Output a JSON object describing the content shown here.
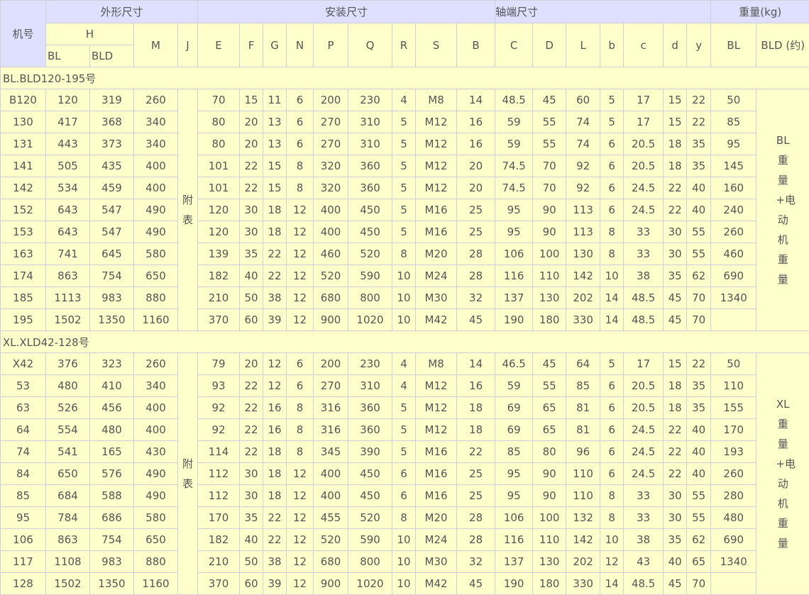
{
  "header": {
    "model": "机号",
    "group_outline": "外形尺寸",
    "group_install": "安装尺寸",
    "group_shaft": "轴端尺寸",
    "group_weight": "重量(kg)",
    "H": "H",
    "H_BL": "BL",
    "H_BLD": "BLD",
    "columns": [
      "M",
      "J",
      "E",
      "F",
      "G",
      "N",
      "P",
      "Q",
      "R",
      "S",
      "B",
      "C",
      "D",
      "L",
      "b",
      "c",
      "d",
      "y"
    ],
    "weight_BL": "BL",
    "weight_BLD": "BLD (约)"
  },
  "sections": [
    {
      "title": "BL.BLD120-195号",
      "J_note": "附表",
      "weight_note": "BL重量+电动机重量",
      "rows": [
        [
          "B120",
          "120",
          "319",
          "260",
          "70",
          "15",
          "11",
          "6",
          "200",
          "230",
          "4",
          "M8",
          "14",
          "48.5",
          "45",
          "60",
          "5",
          "17",
          "15",
          "22",
          "50"
        ],
        [
          "130",
          "417",
          "368",
          "340",
          "80",
          "20",
          "13",
          "6",
          "270",
          "310",
          "5",
          "M12",
          "16",
          "59",
          "55",
          "74",
          "5",
          "17",
          "15",
          "22",
          "85"
        ],
        [
          "131",
          "443",
          "373",
          "340",
          "80",
          "20",
          "13",
          "6",
          "270",
          "310",
          "5",
          "M12",
          "16",
          "59",
          "55",
          "74",
          "6",
          "20.5",
          "18",
          "35",
          "95"
        ],
        [
          "141",
          "505",
          "435",
          "400",
          "101",
          "22",
          "15",
          "8",
          "320",
          "360",
          "5",
          "M12",
          "20",
          "74.5",
          "70",
          "92",
          "6",
          "20.5",
          "18",
          "35",
          "145"
        ],
        [
          "142",
          "534",
          "459",
          "400",
          "101",
          "22",
          "15",
          "8",
          "320",
          "360",
          "5",
          "M12",
          "20",
          "74.5",
          "70",
          "92",
          "6",
          "24.5",
          "22",
          "40",
          "160"
        ],
        [
          "152",
          "643",
          "547",
          "490",
          "120",
          "30",
          "18",
          "12",
          "400",
          "450",
          "5",
          "M16",
          "25",
          "95",
          "90",
          "113",
          "6",
          "24.5",
          "22",
          "40",
          "240"
        ],
        [
          "153",
          "643",
          "547",
          "490",
          "120",
          "30",
          "18",
          "12",
          "400",
          "450",
          "5",
          "M16",
          "25",
          "95",
          "90",
          "113",
          "8",
          "33",
          "30",
          "55",
          "260"
        ],
        [
          "163",
          "741",
          "645",
          "580",
          "139",
          "35",
          "22",
          "12",
          "460",
          "520",
          "8",
          "M20",
          "28",
          "106",
          "100",
          "130",
          "8",
          "33",
          "30",
          "55",
          "460"
        ],
        [
          "174",
          "863",
          "754",
          "650",
          "182",
          "40",
          "22",
          "12",
          "520",
          "590",
          "10",
          "M24",
          "28",
          "116",
          "110",
          "142",
          "10",
          "38",
          "35",
          "62",
          "690"
        ],
        [
          "185",
          "1113",
          "983",
          "880",
          "210",
          "50",
          "38",
          "12",
          "680",
          "800",
          "10",
          "M30",
          "32",
          "137",
          "130",
          "202",
          "14",
          "48.5",
          "45",
          "70",
          "1340"
        ],
        [
          "195",
          "1502",
          "1350",
          "1160",
          "370",
          "60",
          "39",
          "12",
          "900",
          "1020",
          "10",
          "M42",
          "45",
          "190",
          "180",
          "330",
          "14",
          "48.5",
          "45",
          "70",
          ""
        ]
      ]
    },
    {
      "title": "XL.XLD42-128号",
      "J_note": "附表",
      "weight_note": "XL重量+电动机重量",
      "rows": [
        [
          "X42",
          "376",
          "323",
          "260",
          "79",
          "20",
          "12",
          "6",
          "200",
          "230",
          "4",
          "M8",
          "14",
          "46.5",
          "45",
          "64",
          "5",
          "17",
          "15",
          "22",
          "50"
        ],
        [
          "53",
          "480",
          "410",
          "340",
          "93",
          "22",
          "12",
          "6",
          "270",
          "310",
          "4",
          "M12",
          "16",
          "59",
          "55",
          "85",
          "6",
          "20.5",
          "18",
          "35",
          "110"
        ],
        [
          "63",
          "526",
          "456",
          "400",
          "92",
          "22",
          "16",
          "8",
          "316",
          "360",
          "5",
          "M12",
          "18",
          "69",
          "65",
          "81",
          "6",
          "20.5",
          "18",
          "35",
          "155"
        ],
        [
          "64",
          "554",
          "480",
          "400",
          "92",
          "22",
          "16",
          "8",
          "316",
          "360",
          "5",
          "M12",
          "18",
          "69",
          "65",
          "81",
          "6",
          "24.5",
          "22",
          "40",
          "170"
        ],
        [
          "74",
          "541",
          "165",
          "430",
          "114",
          "22",
          "18",
          "8",
          "345",
          "390",
          "5",
          "M16",
          "22",
          "85",
          "80",
          "96",
          "6",
          "24.5",
          "22",
          "40",
          "193"
        ],
        [
          "84",
          "650",
          "576",
          "490",
          "112",
          "30",
          "18",
          "12",
          "400",
          "450",
          "6",
          "M16",
          "25",
          "95",
          "90",
          "110",
          "6",
          "24.5",
          "22",
          "40",
          "260"
        ],
        [
          "85",
          "684",
          "588",
          "490",
          "112",
          "30",
          "18",
          "12",
          "400",
          "450",
          "6",
          "M16",
          "25",
          "95",
          "90",
          "110",
          "8",
          "33",
          "30",
          "55",
          "280"
        ],
        [
          "95",
          "784",
          "686",
          "580",
          "170",
          "35",
          "22",
          "12",
          "455",
          "520",
          "8",
          "M20",
          "28",
          "106",
          "100",
          "132",
          "8",
          "33",
          "30",
          "55",
          "480"
        ],
        [
          "106",
          "863",
          "754",
          "650",
          "182",
          "40",
          "22",
          "12",
          "520",
          "590",
          "10",
          "M24",
          "28",
          "116",
          "110",
          "142",
          "10",
          "38",
          "35",
          "62",
          "690"
        ],
        [
          "117",
          "1108",
          "983",
          "880",
          "210",
          "50",
          "38",
          "12",
          "680",
          "800",
          "10",
          "M30",
          "32",
          "137",
          "130",
          "202",
          "12",
          "43",
          "40",
          "65",
          "1340"
        ],
        [
          "128",
          "1502",
          "1350",
          "1160",
          "370",
          "60",
          "39",
          "12",
          "900",
          "1020",
          "10",
          "M42",
          "45",
          "190",
          "180",
          "330",
          "14",
          "48.5",
          "45",
          "70",
          ""
        ]
      ]
    }
  ]
}
